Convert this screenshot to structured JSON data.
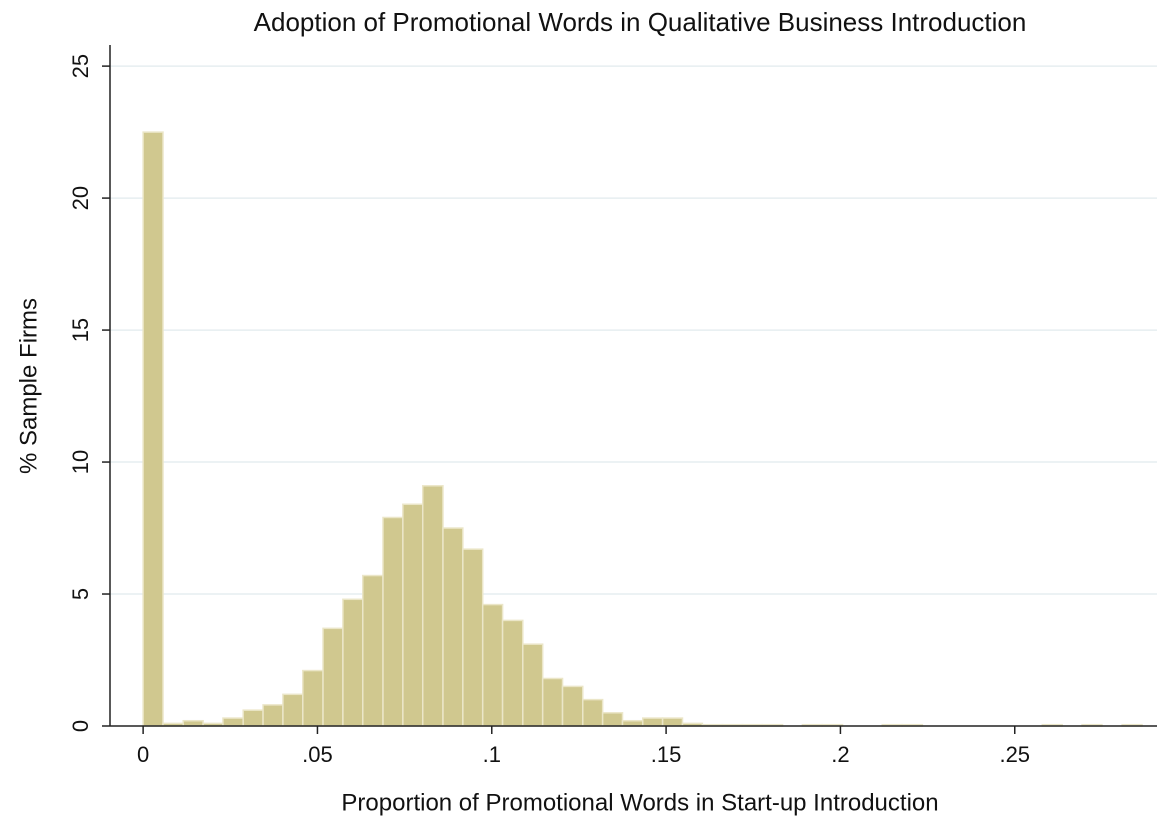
{
  "chart_data": {
    "type": "histogram",
    "title": "Adoption of Promotional Words in Qualitative Business Introduction",
    "x_label": "Proportion of Promotional Words in Start-up Introduction",
    "y_label": "% Sample Firms",
    "bins": [
      0,
      0.0057,
      0.0115,
      0.0172,
      0.0229,
      0.0287,
      0.0344,
      0.0401,
      0.0458,
      0.0516,
      0.0573,
      0.063,
      0.0688,
      0.0745,
      0.0802,
      0.086,
      0.0917,
      0.0974,
      0.1031,
      0.1089,
      0.1146,
      0.1203,
      0.1261,
      0.1318,
      0.1375,
      0.1433,
      0.149,
      0.1547,
      0.1604,
      0.1662,
      0.1719,
      0.1776,
      0.1834,
      0.1891,
      0.1948,
      0.2006,
      0.2063,
      0.212,
      0.2177,
      0.2235,
      0.2292,
      0.2349,
      0.2407,
      0.2464,
      0.2521,
      0.2579,
      0.2636,
      0.2693,
      0.275,
      0.2808,
      0.2865
    ],
    "values": [
      22.5,
      0.1,
      0.2,
      0.1,
      0.3,
      0.6,
      0.8,
      1.2,
      2.1,
      3.7,
      4.8,
      5.7,
      7.9,
      8.4,
      9.1,
      7.5,
      6.7,
      4.6,
      4.0,
      3.1,
      1.8,
      1.5,
      1.0,
      0.5,
      0.2,
      0.3,
      0.3,
      0.1,
      0.05,
      0.05,
      0.05,
      0.05,
      0,
      0.05,
      0.05,
      0,
      0,
      0.05,
      0.05,
      0,
      0,
      0,
      0,
      0,
      0,
      0.05,
      0,
      0.05,
      0,
      0.05
    ],
    "color": "#d0c88f",
    "xlim": [
      -0.0095,
      0.2908
    ],
    "ylim": [
      0,
      25.8
    ],
    "xticks": [
      0,
      {
        "value": 0.05,
        "label": ".05"
      },
      {
        "value": 0.1,
        "label": ".1"
      },
      {
        "value": 0.15,
        "label": ".15"
      },
      {
        "value": 0.2,
        "label": ".2"
      },
      {
        "value": 0.25,
        "label": ".25"
      }
    ],
    "yticks": [
      0,
      5,
      10,
      15,
      20,
      25
    ],
    "grid": true
  }
}
